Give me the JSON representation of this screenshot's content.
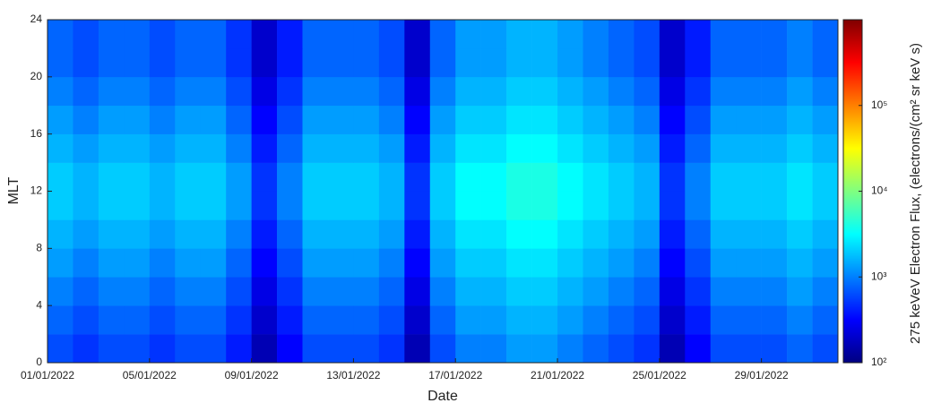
{
  "chart_data": {
    "type": "heatmap",
    "xlabel": "Date",
    "ylabel": "MLT",
    "categories": [
      "01/01/2022",
      null,
      null,
      null,
      "05/01/2022",
      null,
      null,
      null,
      "09/01/2022",
      null,
      null,
      null,
      "13/01/2022",
      null,
      null,
      null,
      "17/01/2022",
      null,
      null,
      null,
      "21/01/2022",
      null,
      null,
      null,
      "25/01/2022",
      null,
      null,
      null,
      "29/01/2022",
      null,
      null
    ],
    "ybins": [
      0,
      2,
      4,
      6,
      8,
      10,
      12,
      14,
      16,
      18,
      20,
      22,
      24
    ],
    "ylim": [
      0,
      24
    ],
    "yticks": [
      0,
      4,
      8,
      12,
      16,
      20,
      24
    ],
    "colormap": "jet",
    "colorbar": {
      "label": "275 keVeV Electron Flux, (electrons/(cm² sr keV s)",
      "log_scale": true,
      "clim": [
        100,
        1000000
      ],
      "ticks": [
        {
          "value": 100,
          "label": "10²"
        },
        {
          "value": 1000,
          "label": "10³"
        },
        {
          "value": 10000,
          "label": "10⁴"
        },
        {
          "value": 100000,
          "label": "10⁵"
        }
      ]
    },
    "z": [
      [
        630,
        500,
        630,
        630,
        500,
        630,
        630,
        400,
        160,
        320,
        630,
        630,
        630,
        500,
        160,
        630,
        1000,
        1000,
        1300,
        1300,
        1000,
        790,
        630,
        500,
        160,
        320,
        630,
        630,
        630,
        790,
        630
      ],
      [
        790,
        630,
        790,
        790,
        630,
        790,
        790,
        500,
        200,
        400,
        790,
        790,
        790,
        630,
        200,
        790,
        1300,
        1300,
        1600,
        1600,
        1300,
        1000,
        790,
        630,
        200,
        400,
        790,
        790,
        790,
        1000,
        790
      ],
      [
        1000,
        790,
        1000,
        1000,
        790,
        1000,
        1000,
        630,
        250,
        500,
        1000,
        1000,
        1000,
        790,
        250,
        1000,
        1600,
        1600,
        2000,
        2000,
        1600,
        1300,
        1000,
        790,
        250,
        500,
        1000,
        1000,
        1000,
        1300,
        1000
      ],
      [
        1300,
        1000,
        1300,
        1300,
        1000,
        1300,
        1300,
        790,
        320,
        630,
        1300,
        1300,
        1300,
        1000,
        320,
        1300,
        2000,
        2000,
        2500,
        2500,
        2000,
        1600,
        1300,
        1000,
        320,
        630,
        1300,
        1300,
        1300,
        1600,
        1300
      ],
      [
        1600,
        1300,
        1600,
        1600,
        1300,
        1600,
        1600,
        1000,
        400,
        790,
        1600,
        1600,
        1600,
        1300,
        400,
        1600,
        2500,
        2500,
        3200,
        3200,
        2500,
        2000,
        1600,
        1300,
        400,
        790,
        1600,
        1600,
        1600,
        2000,
        1600
      ],
      [
        2000,
        1600,
        2000,
        2000,
        1600,
        2000,
        2000,
        1300,
        500,
        1000,
        2000,
        2000,
        2000,
        1600,
        500,
        2000,
        3200,
        3200,
        4000,
        4000,
        3200,
        2500,
        2000,
        1600,
        500,
        1000,
        2000,
        2000,
        2000,
        2500,
        2000
      ],
      [
        2000,
        1600,
        2000,
        2000,
        1600,
        2000,
        2000,
        1300,
        500,
        1000,
        2000,
        2000,
        2000,
        1600,
        500,
        2000,
        3200,
        3200,
        4000,
        4000,
        3200,
        2500,
        2000,
        1600,
        500,
        1000,
        2000,
        2000,
        2000,
        2500,
        2000
      ],
      [
        1600,
        1300,
        1600,
        1600,
        1300,
        1600,
        1600,
        1000,
        400,
        790,
        1600,
        1600,
        1600,
        1300,
        400,
        1600,
        2500,
        2500,
        3200,
        3200,
        2500,
        2000,
        1600,
        1300,
        400,
        790,
        1600,
        1600,
        1600,
        2000,
        1600
      ],
      [
        1300,
        1000,
        1300,
        1300,
        1000,
        1300,
        1300,
        790,
        320,
        630,
        1300,
        1300,
        1300,
        1000,
        320,
        1300,
        2000,
        2000,
        2500,
        2500,
        2000,
        1600,
        1300,
        1000,
        320,
        630,
        1300,
        1300,
        1300,
        1600,
        1300
      ],
      [
        1000,
        790,
        1000,
        1000,
        790,
        1000,
        1000,
        630,
        250,
        500,
        1000,
        1000,
        1000,
        790,
        250,
        1000,
        1600,
        1600,
        2000,
        2000,
        1600,
        1300,
        1000,
        790,
        250,
        500,
        1000,
        1000,
        1000,
        1300,
        1000
      ],
      [
        790,
        630,
        790,
        790,
        630,
        790,
        790,
        500,
        200,
        400,
        790,
        790,
        790,
        630,
        200,
        790,
        1300,
        1300,
        1600,
        1600,
        1300,
        1000,
        790,
        630,
        200,
        400,
        790,
        790,
        790,
        1000,
        790
      ],
      [
        790,
        630,
        790,
        790,
        630,
        790,
        790,
        500,
        200,
        400,
        790,
        790,
        790,
        630,
        200,
        790,
        1300,
        1300,
        1600,
        1600,
        1300,
        1000,
        790,
        630,
        200,
        400,
        790,
        790,
        790,
        1000,
        790
      ]
    ]
  }
}
